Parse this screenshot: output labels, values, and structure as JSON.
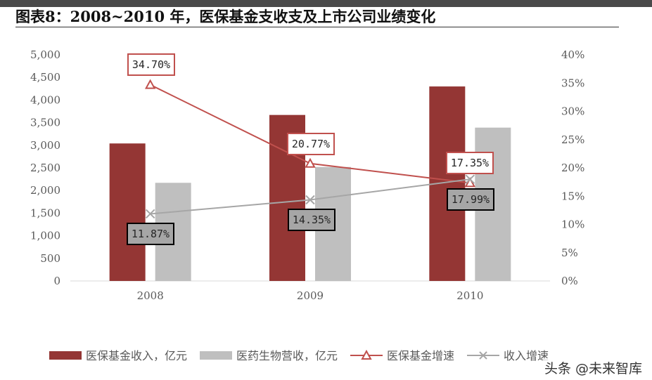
{
  "title": "图表8：2008~2010 年，医保基金支收支及上市公司业绩变化",
  "watermark": "头条 @未来智库",
  "colors": {
    "fund_income": "#943634",
    "pharma_revenue": "#bfbfbf",
    "fund_growth": "#c0504d",
    "revenue_growth": "#a6a6a6"
  },
  "chart_data": {
    "type": "bar",
    "categories": [
      "2008",
      "2009",
      "2010"
    ],
    "series": [
      {
        "name": "医保基金收入，亿元",
        "type": "bar",
        "axis": "left",
        "values": [
          3040,
          3670,
          4300
        ]
      },
      {
        "name": "医药生物营收，亿元",
        "type": "bar",
        "axis": "left",
        "values": [
          2170,
          2520,
          3390
        ]
      },
      {
        "name": "医保基金增速",
        "type": "line",
        "axis": "right",
        "marker": "triangle",
        "values": [
          34.7,
          20.77,
          17.35
        ],
        "labels": [
          "34.70%",
          "20.77%",
          "17.35%"
        ]
      },
      {
        "name": "收入增速",
        "type": "line",
        "axis": "right",
        "marker": "x",
        "values": [
          11.87,
          14.35,
          17.99
        ],
        "labels": [
          "11.87%",
          "14.35%",
          "17.99%"
        ]
      }
    ],
    "y_left": {
      "min": 0,
      "max": 5000,
      "ticks": [
        0,
        500,
        1000,
        1500,
        2000,
        2500,
        3000,
        3500,
        4000,
        4500,
        5000
      ],
      "tick_labels": [
        "0",
        "500",
        "1,000",
        "1,500",
        "2,000",
        "2,500",
        "3,000",
        "3,500",
        "4,000",
        "4,500",
        "5,000"
      ]
    },
    "y_right": {
      "min": 0,
      "max": 40,
      "ticks": [
        0,
        5,
        10,
        15,
        20,
        25,
        30,
        35,
        40
      ],
      "tick_labels": [
        "0%",
        "5%",
        "10%",
        "15%",
        "20%",
        "25%",
        "30%",
        "35%",
        "40%"
      ]
    },
    "grid": false,
    "legend_position": "bottom"
  }
}
